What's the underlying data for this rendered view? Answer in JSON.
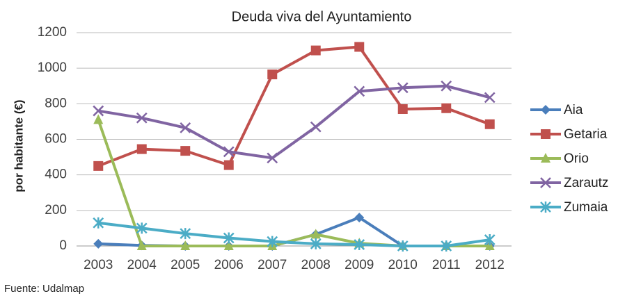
{
  "chart_data": {
    "type": "line",
    "title": "Deuda viva del Ayuntamiento",
    "y_label": "por habitante (€)",
    "source": "Fuente: Udalmap",
    "categories": [
      "2003",
      "2004",
      "2005",
      "2006",
      "2007",
      "2008",
      "2009",
      "2010",
      "2011",
      "2012"
    ],
    "series": [
      {
        "name": "Aia",
        "color": "#4a7ebb",
        "marker": "diamond",
        "values": [
          12,
          3,
          0,
          0,
          0,
          65,
          160,
          0,
          0,
          0
        ]
      },
      {
        "name": "Getaria",
        "color": "#c0504d",
        "marker": "square",
        "values": [
          450,
          545,
          535,
          455,
          965,
          1100,
          1120,
          770,
          775,
          685
        ]
      },
      {
        "name": "Orio",
        "color": "#9bbb59",
        "marker": "triangle",
        "values": [
          710,
          0,
          0,
          0,
          0,
          65,
          15,
          0,
          0,
          0
        ]
      },
      {
        "name": "Zarautz",
        "color": "#8064a2",
        "marker": "x",
        "values": [
          760,
          720,
          665,
          530,
          495,
          670,
          870,
          890,
          900,
          835
        ]
      },
      {
        "name": "Zumaia",
        "color": "#4bacc6",
        "marker": "star",
        "values": [
          130,
          100,
          70,
          45,
          25,
          12,
          8,
          0,
          0,
          35
        ]
      }
    ],
    "ylim": [
      0,
      1200
    ],
    "yticks": [
      0,
      200,
      400,
      600,
      800,
      1000,
      1200
    ],
    "grid": true,
    "legend": "right"
  }
}
